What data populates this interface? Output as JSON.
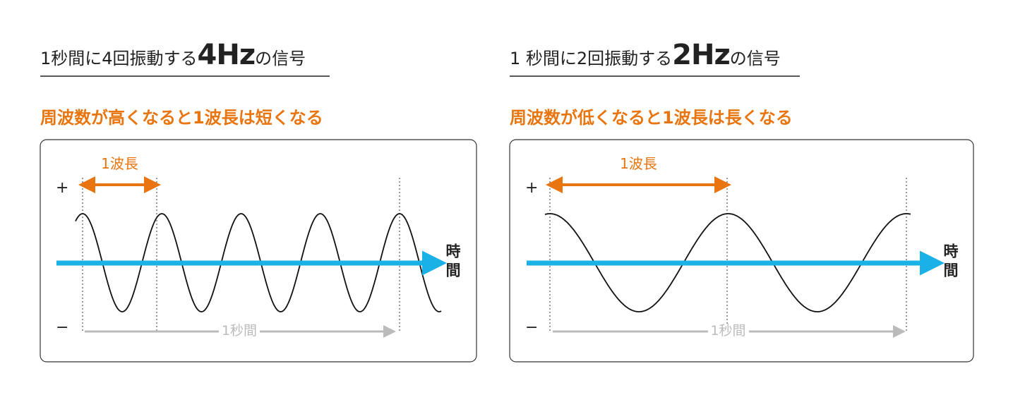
{
  "panels": [
    {
      "title_pre": "1秒間に4回振動する",
      "title_big": "4Hz",
      "title_post": "の信号",
      "subtitle": "周波数が高くなると1波長は短くなる",
      "wavelength_label": "1波長",
      "plus": "+",
      "minus": "−",
      "time_label": "時間",
      "duration_label": "1秒間"
    },
    {
      "title_pre": "1 秒間に2回振動する",
      "title_big": "2Hz",
      "title_post": "の信号",
      "subtitle": "周波数が低くなると1波長は長くなる",
      "wavelength_label": "1波長",
      "plus": "+",
      "minus": "−",
      "time_label": "時間",
      "duration_label": "1秒間"
    }
  ]
}
